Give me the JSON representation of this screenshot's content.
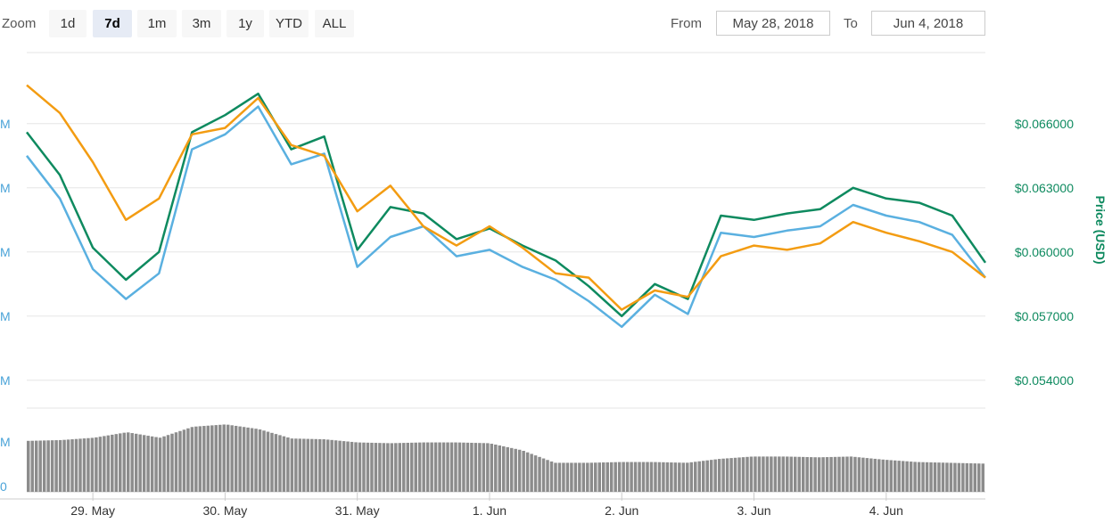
{
  "toolbar": {
    "zoom_label": "Zoom",
    "zoom_buttons": [
      "1d",
      "7d",
      "1m",
      "3m",
      "1y",
      "YTD",
      "ALL"
    ],
    "active_zoom": "7d",
    "from_label": "From",
    "from_value": "May 28, 2018",
    "to_label": "To",
    "to_value": "Jun 4, 2018"
  },
  "colors": {
    "series_blue": "#5ab0e0",
    "series_green": "#0e8a5f",
    "series_orange": "#f39c12",
    "volume_bars": "#8c8c8c",
    "gridline": "#e6e6e6",
    "price_axis": "#0e8a5f",
    "volume_axis": "#4aa3d8"
  },
  "chart_data": {
    "type": "line",
    "x_range": [
      0,
      7.25
    ],
    "x": [
      0,
      0.25,
      0.5,
      0.75,
      1,
      1.25,
      1.5,
      1.75,
      2,
      2.25,
      2.5,
      2.75,
      3,
      3.25,
      3.5,
      3.75,
      4,
      4.25,
      4.5,
      4.75,
      5,
      5.25,
      5.5,
      5.75,
      6,
      6.25,
      6.5,
      6.75,
      7,
      7.25
    ],
    "x_tick_labels": [
      "29. May",
      "30. May",
      "31. May",
      "1. Jun",
      "2. Jun",
      "3. Jun",
      "4. Jun"
    ],
    "x_tick_positions": [
      0.5,
      1.5,
      2.5,
      3.5,
      4.5,
      5.5,
      6.5
    ],
    "y_axis_title": "Price (USD)",
    "y_ticks": [
      0.054,
      0.057,
      0.06,
      0.063,
      0.066
    ],
    "y_tick_labels": [
      "$0.054000",
      "$0.057000",
      "$0.060000",
      "$0.063000",
      "$0.066000"
    ],
    "ylim": [
      0.05295,
      0.06945
    ],
    "volume_axis_ticks_visible": [
      "M",
      "M",
      "M",
      "M",
      "M",
      "M",
      "0"
    ],
    "series": [
      {
        "color_key": "series_blue",
        "values": [
          0.0645,
          0.0625,
          0.0592,
          0.0578,
          0.059,
          0.0648,
          0.0655,
          0.0668,
          0.0641,
          0.0646,
          0.0593,
          0.0607,
          0.0612,
          0.0598,
          0.0601,
          0.0593,
          0.0587,
          0.0577,
          0.0565,
          0.058,
          0.0571,
          0.0609,
          0.0607,
          0.061,
          0.0612,
          0.0622,
          0.0617,
          0.0614,
          0.0608,
          0.0588
        ]
      },
      {
        "color_key": "series_green",
        "values": [
          0.0656,
          0.0636,
          0.0602,
          0.0587,
          0.06,
          0.0656,
          0.0664,
          0.0674,
          0.0648,
          0.0654,
          0.0601,
          0.0621,
          0.0618,
          0.0606,
          0.0611,
          0.0603,
          0.0596,
          0.0584,
          0.057,
          0.0585,
          0.0578,
          0.0617,
          0.0615,
          0.0618,
          0.062,
          0.063,
          0.0625,
          0.0623,
          0.0617,
          0.0595
        ]
      },
      {
        "color_key": "series_orange",
        "values": [
          0.0678,
          0.0665,
          0.0642,
          0.0615,
          0.0625,
          0.0655,
          0.0658,
          0.0672,
          0.065,
          0.0645,
          0.0619,
          0.0631,
          0.0612,
          0.0603,
          0.0612,
          0.0602,
          0.059,
          0.0588,
          0.0573,
          0.0582,
          0.0579,
          0.0598,
          0.0603,
          0.0601,
          0.0604,
          0.0614,
          0.0609,
          0.0605,
          0.06,
          0.0588
        ]
      }
    ],
    "volume_relative": [
      0.65,
      0.66,
      0.69,
      0.76,
      0.69,
      0.83,
      0.86,
      0.8,
      0.68,
      0.67,
      0.63,
      0.62,
      0.63,
      0.63,
      0.62,
      0.53,
      0.37,
      0.37,
      0.38,
      0.38,
      0.37,
      0.42,
      0.45,
      0.45,
      0.44,
      0.45,
      0.41,
      0.38,
      0.37,
      0.36
    ],
    "grid": true
  }
}
